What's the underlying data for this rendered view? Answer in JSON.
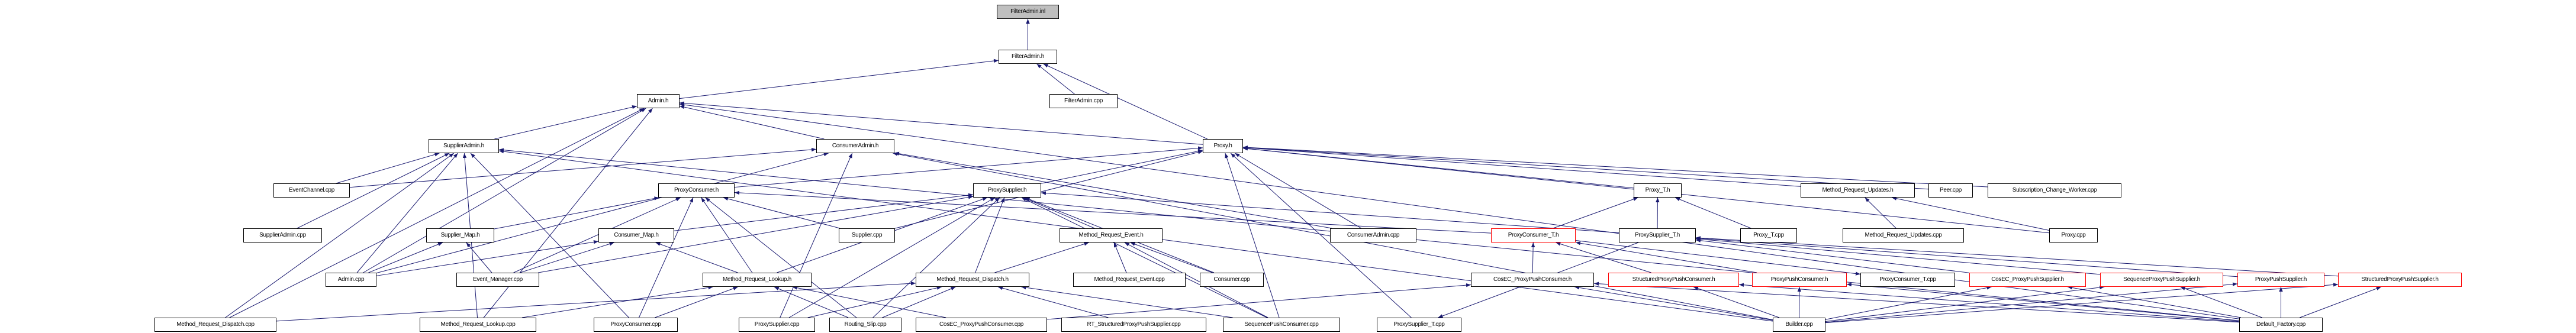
{
  "graph": {
    "edge_color": "#191970",
    "root_fill": "#bfbfbf",
    "truncated_border_color": "#ff0000",
    "nodes": [
      {
        "id": "FilterAdmin.inl",
        "label": "FilterAdmin.inl",
        "root": true
      },
      {
        "id": "FilterAdmin.h",
        "label": "FilterAdmin.h"
      },
      {
        "id": "Admin.h",
        "label": "Admin.h"
      },
      {
        "id": "FilterAdmin.cpp",
        "label": "FilterAdmin.cpp"
      },
      {
        "id": "SupplierAdmin.h",
        "label": "SupplierAdmin.h"
      },
      {
        "id": "ConsumerAdmin.h",
        "label": "ConsumerAdmin.h"
      },
      {
        "id": "Proxy.h",
        "label": "Proxy.h"
      },
      {
        "id": "EventChannel.cpp",
        "label": "EventChannel.cpp"
      },
      {
        "id": "ProxyConsumer.h",
        "label": "ProxyConsumer.h"
      },
      {
        "id": "ProxySupplier.h",
        "label": "ProxySupplier.h"
      },
      {
        "id": "Proxy_T.h",
        "label": "Proxy_T.h"
      },
      {
        "id": "Method_Request_Updates.h",
        "label": "Method_Request_Updates.h"
      },
      {
        "id": "Peer.cpp",
        "label": "Peer.cpp"
      },
      {
        "id": "Subscription_Change_Worker.cpp",
        "label": "Subscription_Change_Worker.cpp"
      },
      {
        "id": "SupplierAdmin.cpp",
        "label": "SupplierAdmin.cpp"
      },
      {
        "id": "Supplier_Map.h",
        "label": "Supplier_Map.h"
      },
      {
        "id": "Consumer_Map.h",
        "label": "Consumer_Map.h"
      },
      {
        "id": "Supplier.cpp",
        "label": "Supplier.cpp"
      },
      {
        "id": "Method_Request_Event.h",
        "label": "Method_Request_Event.h"
      },
      {
        "id": "ConsumerAdmin.cpp",
        "label": "ConsumerAdmin.cpp"
      },
      {
        "id": "ProxyConsumer_T.h",
        "label": "ProxyConsumer_T.h",
        "truncated": true
      },
      {
        "id": "ProxySupplier_T.h",
        "label": "ProxySupplier_T.h"
      },
      {
        "id": "Proxy_T.cpp",
        "label": "Proxy_T.cpp"
      },
      {
        "id": "Method_Request_Updates.cpp",
        "label": "Method_Request_Updates.cpp"
      },
      {
        "id": "Proxy.cpp",
        "label": "Proxy.cpp"
      },
      {
        "id": "Admin.cpp",
        "label": "Admin.cpp"
      },
      {
        "id": "Event_Manager.cpp",
        "label": "Event_Manager.cpp"
      },
      {
        "id": "Method_Request_Lookup.h",
        "label": "Method_Request_Lookup.h"
      },
      {
        "id": "Method_Request_Dispatch.h",
        "label": "Method_Request_Dispatch.h"
      },
      {
        "id": "Method_Request_Event.cpp",
        "label": "Method_Request_Event.cpp"
      },
      {
        "id": "Consumer.cpp",
        "label": "Consumer.cpp"
      },
      {
        "id": "CosEC_ProxyPushConsumer.h",
        "label": "CosEC_ProxyPushConsumer.h"
      },
      {
        "id": "StructuredProxyPushConsumer.h",
        "label": "StructuredProxyPushConsumer.h",
        "truncated": true
      },
      {
        "id": "ProxyPushConsumer.h",
        "label": "ProxyPushConsumer.h",
        "truncated": true
      },
      {
        "id": "ProxyConsumer_T.cpp",
        "label": "ProxyConsumer_T.cpp"
      },
      {
        "id": "CosEC_ProxyPushSupplier.h",
        "label": "CosEC_ProxyPushSupplier.h",
        "truncated": true
      },
      {
        "id": "SequenceProxyPushSupplier.h",
        "label": "SequenceProxyPushSupplier.h",
        "truncated": true
      },
      {
        "id": "ProxyPushSupplier.h",
        "label": "ProxyPushSupplier.h",
        "truncated": true
      },
      {
        "id": "StructuredProxyPushSupplier.h",
        "label": "StructuredProxyPushSupplier.h",
        "truncated": true
      },
      {
        "id": "Method_Request_Dispatch.cpp",
        "label": "Method_Request_Dispatch.cpp"
      },
      {
        "id": "Method_Request_Lookup.cpp",
        "label": "Method_Request_Lookup.cpp"
      },
      {
        "id": "ProxyConsumer.cpp",
        "label": "ProxyConsumer.cpp"
      },
      {
        "id": "ProxySupplier.cpp",
        "label": "ProxySupplier.cpp"
      },
      {
        "id": "Routing_Slip.cpp",
        "label": "Routing_Slip.cpp"
      },
      {
        "id": "CosEC_ProxyPushConsumer.cpp",
        "label": "CosEC_ProxyPushConsumer.cpp"
      },
      {
        "id": "RT_StructuredProxyPushSupplier.cpp",
        "label": "RT_StructuredProxyPushSupplier.cpp"
      },
      {
        "id": "SequencePushConsumer.cpp",
        "label": "SequencePushConsumer.cpp"
      },
      {
        "id": "ProxySupplier_T.cpp",
        "label": "ProxySupplier_T.cpp"
      },
      {
        "id": "Builder.cpp",
        "label": "Builder.cpp"
      },
      {
        "id": "Default_Factory.cpp",
        "label": "Default_Factory.cpp"
      }
    ],
    "edges": [
      [
        "FilterAdmin.h",
        "FilterAdmin.inl"
      ],
      [
        "Admin.h",
        "FilterAdmin.h"
      ],
      [
        "FilterAdmin.cpp",
        "FilterAdmin.h"
      ],
      [
        "Proxy.h",
        "FilterAdmin.h"
      ],
      [
        "SupplierAdmin.h",
        "Admin.h"
      ],
      [
        "ConsumerAdmin.h",
        "Admin.h"
      ],
      [
        "Admin.cpp",
        "Admin.h"
      ],
      [
        "Method_Request_Dispatch.cpp",
        "Admin.h"
      ],
      [
        "Method_Request_Lookup.cpp",
        "Admin.h"
      ],
      [
        "Default_Factory.cpp",
        "Admin.h"
      ],
      [
        "Proxy.h",
        "Admin.h"
      ],
      [
        "EventChannel.cpp",
        "SupplierAdmin.h"
      ],
      [
        "EventChannel.cpp",
        "ConsumerAdmin.h"
      ],
      [
        "SupplierAdmin.cpp",
        "SupplierAdmin.h"
      ],
      [
        "Admin.cpp",
        "SupplierAdmin.h"
      ],
      [
        "Admin.cpp",
        "ConsumerAdmin.h"
      ],
      [
        "Builder.cpp",
        "SupplierAdmin.h"
      ],
      [
        "Builder.cpp",
        "ConsumerAdmin.h"
      ],
      [
        "Method_Request_Dispatch.cpp",
        "SupplierAdmin.h"
      ],
      [
        "Method_Request_Lookup.cpp",
        "SupplierAdmin.h"
      ],
      [
        "ProxyConsumer.cpp",
        "SupplierAdmin.h"
      ],
      [
        "ProxySupplier.cpp",
        "ConsumerAdmin.h"
      ],
      [
        "ConsumerAdmin.cpp",
        "ConsumerAdmin.h"
      ],
      [
        "Default_Factory.cpp",
        "SupplierAdmin.h"
      ],
      [
        "ProxyConsumer.h",
        "Proxy.h"
      ],
      [
        "ProxySupplier.h",
        "Proxy.h"
      ],
      [
        "Proxy_T.h",
        "Proxy.h"
      ],
      [
        "Method_Request_Updates.h",
        "Proxy.h"
      ],
      [
        "Peer.cpp",
        "Proxy.h"
      ],
      [
        "Subscription_Change_Worker.cpp",
        "Proxy.h"
      ],
      [
        "Proxy.cpp",
        "Proxy.h"
      ],
      [
        "ConsumerAdmin.cpp",
        "Proxy.h"
      ],
      [
        "SequencePushConsumer.cpp",
        "Proxy.h"
      ],
      [
        "ProxySupplier_T.cpp",
        "Proxy.h"
      ],
      [
        "Supplier.cpp",
        "Proxy.h"
      ],
      [
        "Supplier.cpp",
        "ProxyConsumer.h"
      ],
      [
        "Supplier_Map.h",
        "ProxyConsumer.h"
      ],
      [
        "Consumer_Map.h",
        "ProxySupplier.h"
      ],
      [
        "Admin.cpp",
        "Supplier_Map.h"
      ],
      [
        "Admin.cpp",
        "Consumer_Map.h"
      ],
      [
        "Event_Manager.cpp",
        "Supplier_Map.h"
      ],
      [
        "Event_Manager.cpp",
        "Consumer_Map.h"
      ],
      [
        "Event_Manager.cpp",
        "ProxyConsumer.h"
      ],
      [
        "Event_Manager.cpp",
        "ProxySupplier.h"
      ],
      [
        "Method_Request_Lookup.h",
        "ProxyConsumer.h"
      ],
      [
        "Method_Request_Lookup.h",
        "Consumer_Map.h"
      ],
      [
        "Method_Request_Lookup.h",
        "ProxySupplier.h"
      ],
      [
        "Method_Request_Dispatch.h",
        "ProxySupplier.h"
      ],
      [
        "Method_Request_Dispatch.h",
        "Method_Request_Event.h"
      ],
      [
        "Method_Request_Event.h",
        "ProxySupplier.h"
      ],
      [
        "Method_Request_Event.cpp",
        "Method_Request_Event.h"
      ],
      [
        "Consumer.cpp",
        "ProxySupplier.h"
      ],
      [
        "Consumer.cpp",
        "Method_Request_Event.h"
      ],
      [
        "ProxyConsumer.cpp",
        "ProxyConsumer.h"
      ],
      [
        "ProxyConsumer.cpp",
        "Method_Request_Lookup.h"
      ],
      [
        "ProxySupplier.cpp",
        "ProxySupplier.h"
      ],
      [
        "ProxySupplier.cpp",
        "Method_Request_Dispatch.h"
      ],
      [
        "Routing_Slip.cpp",
        "ProxyConsumer.h"
      ],
      [
        "Routing_Slip.cpp",
        "Method_Request_Lookup.h"
      ],
      [
        "Routing_Slip.cpp",
        "Method_Request_Dispatch.h"
      ],
      [
        "Routing_Slip.cpp",
        "ProxySupplier.h"
      ],
      [
        "CosEC_ProxyPushConsumer.cpp",
        "Method_Request_Lookup.h"
      ],
      [
        "CosEC_ProxyPushConsumer.cpp",
        "CosEC_ProxyPushConsumer.h"
      ],
      [
        "RT_StructuredProxyPushSupplier.cpp",
        "Method_Request_Dispatch.h"
      ],
      [
        "SequencePushConsumer.cpp",
        "Method_Request_Dispatch.h"
      ],
      [
        "SequencePushConsumer.cpp",
        "ProxySupplier.h"
      ],
      [
        "SequencePushConsumer.cpp",
        "Method_Request_Event.h"
      ],
      [
        "Method_Request_Dispatch.cpp",
        "Method_Request_Dispatch.h"
      ],
      [
        "Method_Request_Lookup.cpp",
        "Method_Request_Lookup.h"
      ],
      [
        "ProxyConsumer_T.h",
        "Proxy_T.h"
      ],
      [
        "ProxyConsumer_T.h",
        "ProxyConsumer.h"
      ],
      [
        "ProxySupplier_T.h",
        "Proxy_T.h"
      ],
      [
        "ProxySupplier_T.h",
        "ProxySupplier.h"
      ],
      [
        "Proxy_T.cpp",
        "Proxy_T.h"
      ],
      [
        "ProxySupplier_T.h",
        "ProxySupplier_T.cpp"
      ],
      [
        "ProxyConsumer_T.h",
        "ProxyConsumer_T.cpp"
      ],
      [
        "Method_Request_Updates.cpp",
        "Method_Request_Updates.h"
      ],
      [
        "Proxy.cpp",
        "Method_Request_Updates.h"
      ],
      [
        "CosEC_ProxyPushConsumer.h",
        "ProxyConsumer_T.h"
      ],
      [
        "StructuredProxyPushConsumer.h",
        "ProxyConsumer_T.h"
      ],
      [
        "ProxyPushConsumer.h",
        "ProxyConsumer_T.h"
      ],
      [
        "CosEC_ProxyPushSupplier.h",
        "ProxySupplier_T.h"
      ],
      [
        "SequenceProxyPushSupplier.h",
        "ProxySupplier_T.h"
      ],
      [
        "ProxyPushSupplier.h",
        "ProxySupplier_T.h"
      ],
      [
        "StructuredProxyPushSupplier.h",
        "ProxySupplier_T.h"
      ],
      [
        "Builder.cpp",
        "CosEC_ProxyPushConsumer.h"
      ],
      [
        "Builder.cpp",
        "StructuredProxyPushConsumer.h"
      ],
      [
        "Builder.cpp",
        "ProxyPushConsumer.h"
      ],
      [
        "Builder.cpp",
        "CosEC_ProxyPushSupplier.h"
      ],
      [
        "Builder.cpp",
        "SequenceProxyPushSupplier.h"
      ],
      [
        "Builder.cpp",
        "ProxyPushSupplier.h"
      ],
      [
        "Builder.cpp",
        "StructuredProxyPushSupplier.h"
      ],
      [
        "Default_Factory.cpp",
        "CosEC_ProxyPushConsumer.h"
      ],
      [
        "Default_Factory.cpp",
        "StructuredProxyPushConsumer.h"
      ],
      [
        "Default_Factory.cpp",
        "ProxyPushConsumer.h"
      ],
      [
        "Default_Factory.cpp",
        "CosEC_ProxyPushSupplier.h"
      ],
      [
        "Default_Factory.cpp",
        "SequenceProxyPushSupplier.h"
      ],
      [
        "Default_Factory.cpp",
        "ProxyPushSupplier.h"
      ],
      [
        "Default_Factory.cpp",
        "StructuredProxyPushSupplier.h"
      ]
    ]
  }
}
